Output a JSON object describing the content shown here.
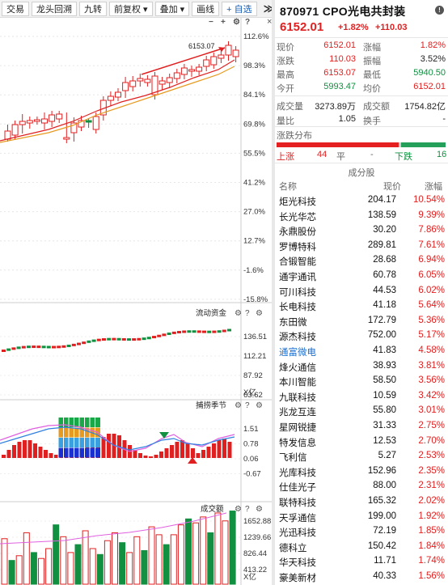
{
  "toolbar": {
    "buttons": [
      "交易",
      "龙头回溯",
      "九转",
      "前复权 ▾",
      "叠加 ▾",
      "画线"
    ],
    "add_label": "+ 自选",
    "more_label": "≫"
  },
  "chart": {
    "axis_labels": [
      "112.6%",
      "98.3%",
      "84.1%",
      "69.8%",
      "55.5%",
      "41.2%",
      "27.0%",
      "12.7%",
      "-1.6%",
      "-15.8%"
    ],
    "high_annotation": "6153.07",
    "panel2": {
      "title": "流动资金",
      "ticks": [
        "136.51",
        "112.21",
        "87.92",
        "63.62"
      ],
      "unit": "X亿"
    },
    "panel3": {
      "title": "捕捞季节",
      "ticks": [
        "1.51",
        "0.78",
        "0.06",
        "-0.67"
      ]
    },
    "panel4": {
      "title": "成交额",
      "ticks": [
        "1652.88",
        "1239.66",
        "826.44",
        "413.22"
      ],
      "unit": "X亿"
    },
    "icons": {
      "close": "×",
      "add": "+",
      "minus": "−",
      "help": "?",
      "settings": "⚙"
    }
  },
  "chart_data": {
    "type": "bar",
    "title": "成交额",
    "ylim": [
      0,
      1800
    ],
    "values": [
      1150,
      600,
      720,
      1300,
      800,
      650,
      900,
      1500,
      1200,
      800,
      1000,
      1350,
      900,
      750,
      1100,
      1300,
      1050,
      800,
      1200,
      850,
      1450,
      1250,
      1000,
      1250,
      1500,
      1650,
      1550,
      1700,
      1300,
      1800,
      1600,
      1850
    ]
  },
  "quote": {
    "title": "870971 CPO光电共封装",
    "price": "6152.01",
    "change_pct": "+1.82%",
    "change": "+110.03",
    "stats": [
      {
        "l1": "现价",
        "v1": "6152.01",
        "c1": "red",
        "l2": "涨幅",
        "v2": "1.82%",
        "c2": "red"
      },
      {
        "l1": "涨跌",
        "v1": "110.03",
        "c1": "red",
        "l2": "振幅",
        "v2": "3.52%",
        "c2": ""
      },
      {
        "l1": "最高",
        "v1": "6153.07",
        "c1": "red",
        "l2": "最低",
        "v2": "5940.50",
        "c2": "grn"
      },
      {
        "l1": "今开",
        "v1": "5993.47",
        "c1": "grn",
        "l2": "均价",
        "v2": "6152.01",
        "c2": "red"
      }
    ],
    "vol": {
      "l1": "成交量",
      "v1": "3273.89万",
      "l2": "成交额",
      "v2": "1754.82亿"
    },
    "ratio": {
      "l1": "量比",
      "v1": "1.05",
      "l2": "换手",
      "v2": "-"
    },
    "dist_title": "涨跌分布",
    "dist": {
      "up_label": "上涨",
      "up": "44",
      "flat_label": "平",
      "flat": "-",
      "down_label": "下跌",
      "down": "16"
    },
    "cft_head": "成分股",
    "col_name": "名称",
    "col_price": "现价",
    "col_pct": "涨幅",
    "stocks": [
      {
        "name": "炬光科技",
        "price": "204.17",
        "pct": "10.54%",
        "blue": false
      },
      {
        "name": "长光华芯",
        "price": "138.59",
        "pct": "9.39%",
        "blue": false
      },
      {
        "name": "永鼎股份",
        "price": "30.20",
        "pct": "7.86%",
        "blue": false
      },
      {
        "name": "罗博特科",
        "price": "289.81",
        "pct": "7.61%",
        "blue": false
      },
      {
        "name": "合锻智能",
        "price": "28.68",
        "pct": "6.94%",
        "blue": false
      },
      {
        "name": "通宇通讯",
        "price": "60.78",
        "pct": "6.05%",
        "blue": false
      },
      {
        "name": "可川科技",
        "price": "44.53",
        "pct": "6.02%",
        "blue": false
      },
      {
        "name": "长电科技",
        "price": "41.18",
        "pct": "5.64%",
        "blue": false
      },
      {
        "name": "东田微",
        "price": "172.79",
        "pct": "5.36%",
        "blue": false
      },
      {
        "name": "源杰科技",
        "price": "752.00",
        "pct": "5.17%",
        "blue": false
      },
      {
        "name": "通富微电",
        "price": "41.83",
        "pct": "4.58%",
        "blue": true
      },
      {
        "name": "烽火通信",
        "price": "38.93",
        "pct": "3.81%",
        "blue": false
      },
      {
        "name": "本川智能",
        "price": "58.50",
        "pct": "3.56%",
        "blue": false
      },
      {
        "name": "九联科技",
        "price": "10.59",
        "pct": "3.42%",
        "blue": false
      },
      {
        "name": "兆龙互连",
        "price": "55.80",
        "pct": "3.01%",
        "blue": false
      },
      {
        "name": "星网锐捷",
        "price": "31.33",
        "pct": "2.75%",
        "blue": false
      },
      {
        "name": "特发信息",
        "price": "12.53",
        "pct": "2.70%",
        "blue": false
      },
      {
        "name": "飞利信",
        "price": "5.27",
        "pct": "2.53%",
        "blue": false
      },
      {
        "name": "光库科技",
        "price": "152.96",
        "pct": "2.35%",
        "blue": false
      },
      {
        "name": "仕佳光子",
        "price": "88.00",
        "pct": "2.31%",
        "blue": false
      },
      {
        "name": "联特科技",
        "price": "165.32",
        "pct": "2.02%",
        "blue": false
      },
      {
        "name": "天孚通信",
        "price": "199.00",
        "pct": "1.92%",
        "blue": false
      },
      {
        "name": "光迅科技",
        "price": "72.19",
        "pct": "1.85%",
        "blue": false
      },
      {
        "name": "德科立",
        "price": "150.42",
        "pct": "1.84%",
        "blue": false
      },
      {
        "name": "华天科技",
        "price": "11.71",
        "pct": "1.74%",
        "blue": false
      },
      {
        "name": "豪美新材",
        "price": "40.33",
        "pct": "1.56%",
        "blue": false
      }
    ]
  }
}
